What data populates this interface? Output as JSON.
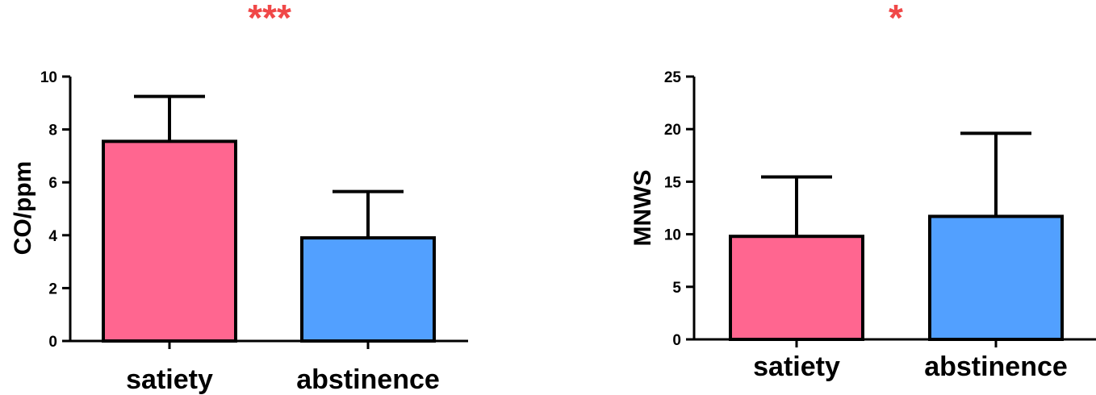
{
  "chart_data": [
    {
      "type": "bar",
      "title": "",
      "significance": "***",
      "categories": [
        "satiety",
        "abstinence"
      ],
      "values": [
        7.55,
        3.9
      ],
      "errors": [
        1.7,
        1.75
      ],
      "xlabel": "",
      "ylabel": "CO/ppm",
      "ylim": [
        0,
        10
      ],
      "yticks": [
        0,
        2,
        4,
        6,
        8,
        10
      ],
      "colors": [
        "#ff6690",
        "#52a0ff"
      ],
      "grid": false
    },
    {
      "type": "bar",
      "title": "",
      "significance": "*",
      "categories": [
        "satiety",
        "abstinence"
      ],
      "values": [
        9.8,
        11.7
      ],
      "errors": [
        5.65,
        7.9
      ],
      "xlabel": "",
      "ylabel": "MNWS",
      "ylim": [
        0,
        25
      ],
      "yticks": [
        0,
        5,
        10,
        15,
        20,
        25
      ],
      "colors": [
        "#ff6690",
        "#52a0ff"
      ],
      "grid": false
    }
  ],
  "significance_color": "#f04848"
}
